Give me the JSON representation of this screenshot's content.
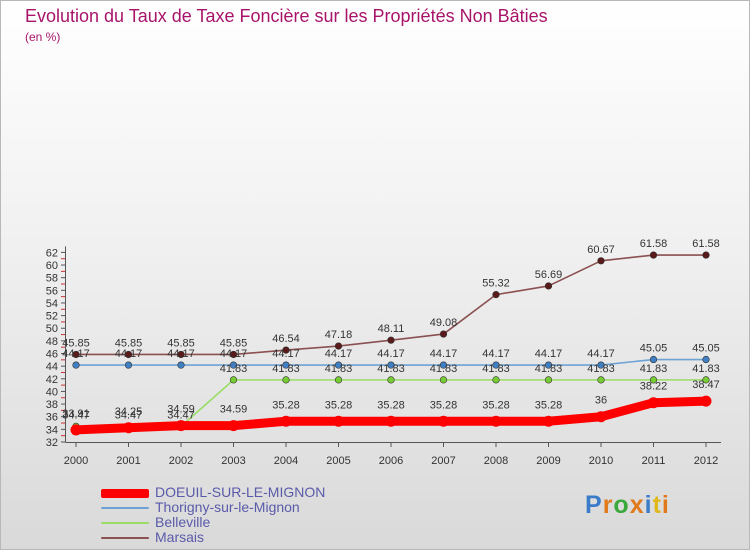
{
  "title": "Evolution du Taux de Taxe Foncière sur les Propriétés Non Bâties",
  "subtitle": "(en %)",
  "logo": {
    "letters": [
      "P",
      "r",
      "o",
      "x",
      "i",
      "t",
      "i"
    ],
    "colors": [
      "#3a7cc8",
      "#e07a1a",
      "#3aa83a",
      "#e07a1a",
      "#3a7cc8",
      "#e0b81a",
      "#e07a1a"
    ]
  },
  "chart_data": {
    "type": "line",
    "x": [
      "2000",
      "2001",
      "2002",
      "2003",
      "2004",
      "2005",
      "2006",
      "2007",
      "2008",
      "2009",
      "2010",
      "2011",
      "2012"
    ],
    "ylim": [
      32,
      62
    ],
    "yticks": [
      "32",
      "34",
      "36",
      "38",
      "40",
      "42",
      "44",
      "46",
      "48",
      "50",
      "52",
      "54",
      "56",
      "58",
      "60",
      "62"
    ],
    "grid": false,
    "legend_position": "bottom-left",
    "series": [
      {
        "name": "DOEUIL-SUR-LE-MIGNON",
        "color": "#ff0000",
        "marker": "#ff0000",
        "values": [
          33.91,
          34.25,
          34.59,
          34.59,
          35.28,
          35.28,
          35.28,
          35.28,
          35.28,
          35.28,
          36,
          38.22,
          38.47
        ],
        "labels": [
          "33.91",
          "34.25",
          "34.59",
          "34.59",
          "35.28",
          "35.28",
          "35.28",
          "35.28",
          "35.28",
          "35.28",
          "36",
          "38.22",
          "38.47"
        ]
      },
      {
        "name": "Thorigny-sur-le-Mignon",
        "color": "#6ea2d4",
        "marker": "#3f7fc2",
        "values": [
          44.17,
          44.17,
          44.17,
          44.17,
          44.17,
          44.17,
          44.17,
          44.17,
          44.17,
          44.17,
          44.17,
          45.05,
          45.05
        ],
        "labels": [
          "44.17",
          "44.17",
          "44.17",
          "44.17",
          "44.17",
          "44.17",
          "44.17",
          "44.17",
          "44.17",
          "44.17",
          "44.17",
          "45.05",
          "45.05"
        ]
      },
      {
        "name": "Belleville",
        "color": "#99dd66",
        "marker": "#77cc33",
        "values": [
          34.47,
          34.47,
          34.47,
          41.83,
          41.83,
          41.83,
          41.83,
          41.83,
          41.83,
          41.83,
          41.83,
          41.83,
          41.83
        ],
        "labels": [
          "34.47",
          "34.47",
          "34.47",
          "41.83",
          "41.83",
          "41.83",
          "41.83",
          "41.83",
          "41.83",
          "41.83",
          "41.83",
          "41.83",
          "41.83"
        ]
      },
      {
        "name": "Marsais",
        "color": "#8b5050",
        "marker": "#5a1a1a",
        "values": [
          45.85,
          45.85,
          45.85,
          45.85,
          46.54,
          47.18,
          48.11,
          49.08,
          55.32,
          56.69,
          60.67,
          61.58,
          61.58
        ],
        "labels": [
          "45.85",
          "45.85",
          "45.85",
          "45.85",
          "46.54",
          "47.18",
          "48.11",
          "49.08",
          "55.32",
          "56.69",
          "60.67",
          "61.58",
          "61.58"
        ]
      }
    ]
  }
}
